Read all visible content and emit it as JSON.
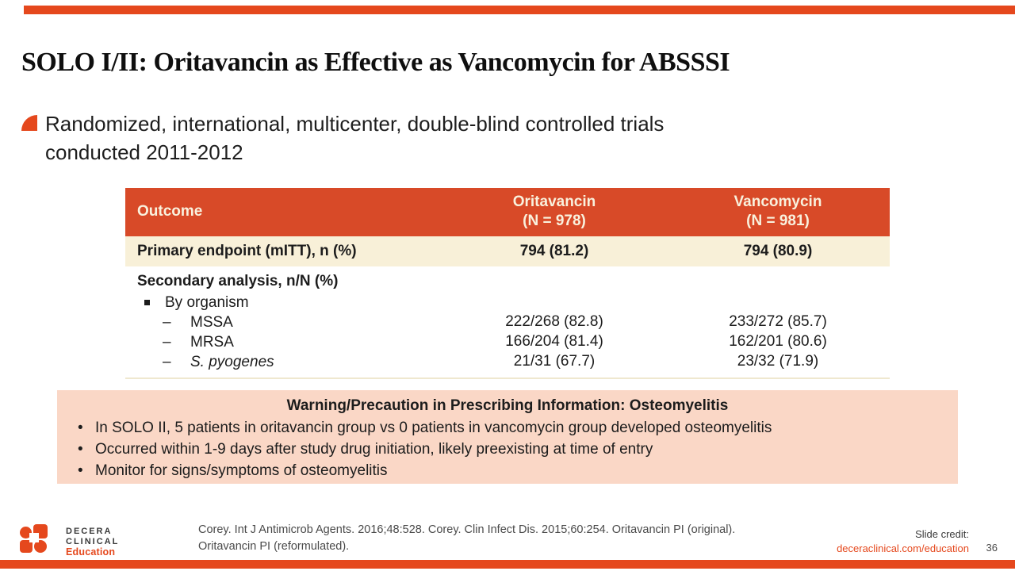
{
  "slide": {
    "title": "SOLO I/II: Oritavancin as Effective as Vancomycin for ABSSSI",
    "page_number": "36"
  },
  "intro_bullet": {
    "lines": [
      "Randomized, international, multicenter, double-blind controlled trials",
      "conducted 2011-2012"
    ]
  },
  "table": {
    "header": {
      "outcome": "Outcome",
      "oritavancin_line1": "Oritavancin",
      "oritavancin_line2": "(N = 978)",
      "vancomycin_line1": "Vancomycin",
      "vancomycin_line2": "(N = 981)"
    },
    "primary_row": {
      "label": "Primary endpoint (mITT), n (%)",
      "oritavancin": "794 (81.2)",
      "vancomycin": "794 (80.9)"
    },
    "secondary_label": "Secondary analysis, n/N (%)",
    "organism_label": "By organism",
    "dash": "–",
    "organism_rows": [
      {
        "label": "MSSA",
        "oritavancin": "222/268 (82.8)",
        "vancomycin": "233/272 (85.7)"
      },
      {
        "label": "MRSA",
        "oritavancin": "166/204 (81.4)",
        "vancomycin": "162/201 (80.6)"
      },
      {
        "label": "S. pyogenes",
        "oritavancin": "21/31 (67.7)",
        "vancomycin": "23/32 (71.9)"
      }
    ]
  },
  "warning_box": {
    "title": "Warning/Precaution in Prescribing Information: Osteomyelitis",
    "bullet_glyph": "•",
    "bullets": [
      "In SOLO II, 5 patients in oritavancin group vs 0 patients in vancomycin group developed osteomyelitis",
      "Occurred within 1-9 days after study drug initiation, likely preexisting at time of entry",
      "Monitor for signs/symptoms of osteomyelitis"
    ]
  },
  "footer": {
    "logo": {
      "line1": "DECERA",
      "line2": "CLINICAL",
      "line3": "Education"
    },
    "citation_line1": "Corey. Int J Antimicrob Agents. 2016;48:528. Corey. Clin Infect Dis. 2015;60:254. Oritavancin PI (original).",
    "citation_line2": "Oritavancin PI (reformulated).",
    "slide_credit_label": "Slide credit:",
    "slide_credit_link": "deceraclinical.com/education"
  },
  "colors": {
    "accent_orange": "#E5481D",
    "table_header_bg": "#D84A28",
    "table_header_text": "#F9F1DD",
    "primary_row_bg": "#F8F0D8",
    "warning_bg": "#FAD7C6",
    "body_text": "#1C1C1C"
  }
}
